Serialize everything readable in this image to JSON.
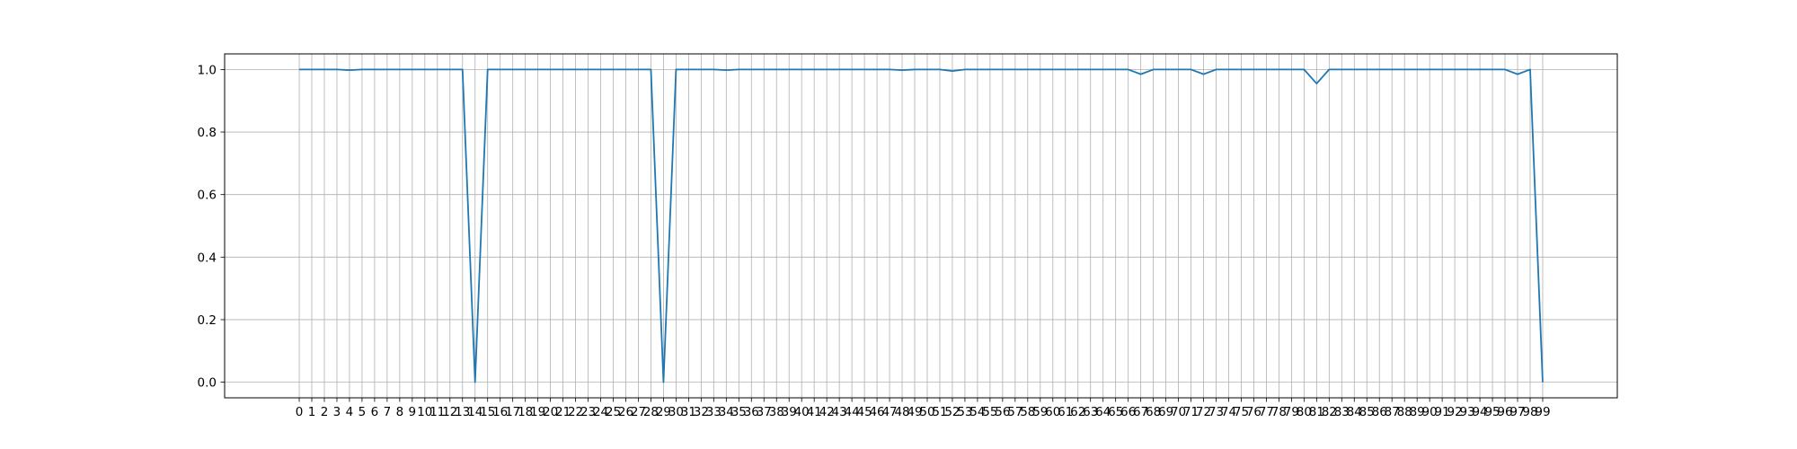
{
  "chart_data": {
    "type": "line",
    "title": "",
    "xlabel": "",
    "ylabel": "",
    "x": [
      0,
      1,
      2,
      3,
      4,
      5,
      6,
      7,
      8,
      9,
      10,
      11,
      12,
      13,
      14,
      15,
      16,
      17,
      18,
      19,
      20,
      21,
      22,
      23,
      24,
      25,
      26,
      27,
      28,
      29,
      30,
      31,
      32,
      33,
      34,
      35,
      36,
      37,
      38,
      39,
      40,
      41,
      42,
      43,
      44,
      45,
      46,
      47,
      48,
      49,
      50,
      51,
      52,
      53,
      54,
      55,
      56,
      57,
      58,
      59,
      60,
      61,
      62,
      63,
      64,
      65,
      66,
      67,
      68,
      69,
      70,
      71,
      72,
      73,
      74,
      75,
      76,
      77,
      78,
      79,
      80,
      81,
      82,
      83,
      84,
      85,
      86,
      87,
      88,
      89,
      90,
      91,
      92,
      93,
      94,
      95,
      96,
      97,
      98,
      99
    ],
    "x_tick_labels": [
      "0",
      "1",
      "2",
      "3",
      "4",
      "5",
      "6",
      "7",
      "8",
      "9",
      "10",
      "11",
      "12",
      "13",
      "14",
      "15",
      "16",
      "17",
      "18",
      "19",
      "20",
      "21",
      "22",
      "23",
      "24",
      "25",
      "26",
      "27",
      "28",
      "29",
      "30",
      "31",
      "32",
      "33",
      "34",
      "35",
      "36",
      "37",
      "38",
      "39",
      "40",
      "41",
      "42",
      "43",
      "44",
      "45",
      "46",
      "47",
      "48",
      "49",
      "50",
      "51",
      "52",
      "53",
      "54",
      "55",
      "56",
      "57",
      "58",
      "59",
      "60",
      "61",
      "62",
      "63",
      "64",
      "65",
      "66",
      "67",
      "68",
      "69",
      "70",
      "71",
      "72",
      "73",
      "74",
      "75",
      "76",
      "77",
      "78",
      "79",
      "80",
      "81",
      "82",
      "83",
      "84",
      "85",
      "86",
      "87",
      "88",
      "89",
      "90",
      "91",
      "92",
      "93",
      "94",
      "95",
      "96",
      "97",
      "98",
      "99"
    ],
    "series": [
      {
        "values": [
          1.0,
          1.0,
          1.0,
          1.0,
          0.998,
          1.0,
          1.0,
          1.0,
          1.0,
          1.0,
          1.0,
          1.0,
          1.0,
          1.0,
          0.0,
          1.0,
          1.0,
          1.0,
          1.0,
          1.0,
          1.0,
          1.0,
          1.0,
          1.0,
          1.0,
          1.0,
          1.0,
          1.0,
          1.0,
          0.0,
          1.0,
          1.0,
          1.0,
          1.0,
          0.998,
          1.0,
          1.0,
          1.0,
          1.0,
          1.0,
          1.0,
          1.0,
          1.0,
          1.0,
          1.0,
          1.0,
          1.0,
          1.0,
          0.998,
          1.0,
          1.0,
          1.0,
          0.995,
          1.0,
          1.0,
          1.0,
          1.0,
          1.0,
          1.0,
          1.0,
          1.0,
          1.0,
          1.0,
          1.0,
          1.0,
          1.0,
          1.0,
          0.985,
          1.0,
          1.0,
          1.0,
          1.0,
          0.985,
          1.0,
          1.0,
          1.0,
          1.0,
          1.0,
          1.0,
          1.0,
          1.0,
          0.955,
          1.0,
          1.0,
          1.0,
          1.0,
          1.0,
          1.0,
          1.0,
          1.0,
          1.0,
          1.0,
          1.0,
          1.0,
          1.0,
          1.0,
          1.0,
          0.985,
          1.0,
          0.0
        ]
      }
    ],
    "ylim": [
      -0.05,
      1.05
    ],
    "y_ticks": [
      0.0,
      0.2,
      0.4,
      0.6,
      0.8,
      1.0
    ],
    "y_tick_labels": [
      "0.0",
      "0.2",
      "0.4",
      "0.6",
      "0.8",
      "1.0"
    ],
    "grid": true,
    "line_color": "#1f77b4",
    "grid_color": "#b0b0b0"
  }
}
